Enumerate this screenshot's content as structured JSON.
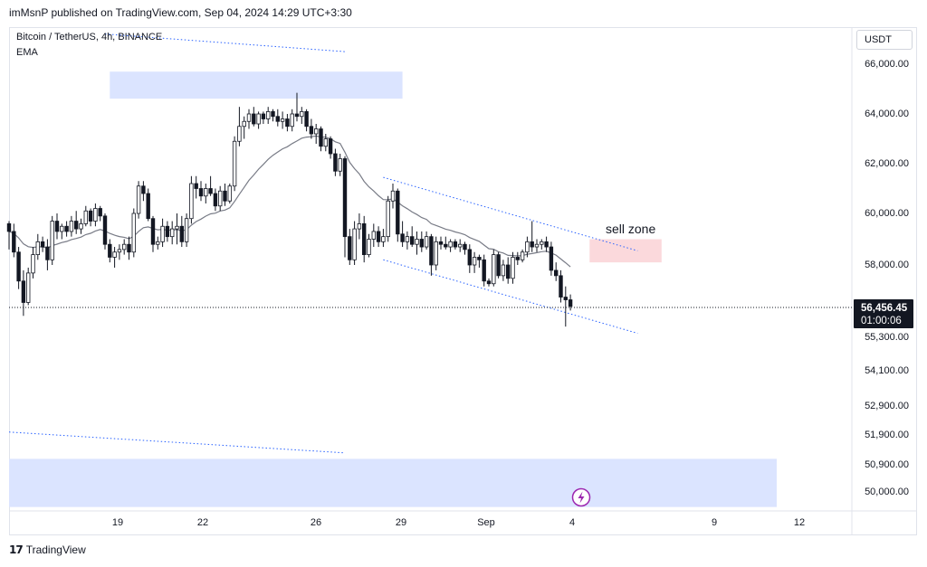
{
  "header": {
    "publisher_line": "imMsnP published on TradingView.com, Sep 04, 2024 14:29 UTC+3:30"
  },
  "legend": {
    "symbol": "Bitcoin / TetherUS, 4h, BINANCE",
    "indicator": "EMA"
  },
  "price_axis": {
    "currency": "USDT",
    "current_price": "56,456.45",
    "countdown": "01:00:06"
  },
  "annotations": {
    "sell_zone": "sell zone"
  },
  "footer": {
    "brand": "TradingView"
  },
  "colors": {
    "bull": "#ffffff",
    "bear": "#131722",
    "ema": "#787b86",
    "zone_blue": "#dbe4ff",
    "zone_red": "#fbd9dc",
    "trendline": "#2962ff",
    "price_label_bg": "#131722",
    "lightning": "#9c27b0"
  },
  "chart_data": {
    "type": "candlestick",
    "x_axis_labels": [
      "19",
      "22",
      "26",
      "29",
      "Sep",
      "4",
      "9",
      "12"
    ],
    "y_axis_labels": [
      "66,000.00",
      "64,000.00",
      "62,000.00",
      "60,000.00",
      "58,000.00",
      "55,300.00",
      "54,100.00",
      "52,900.00",
      "51,900.00",
      "50,900.00",
      "50,000.00"
    ],
    "current_price": 56456.45,
    "candles": [
      [
        59600,
        59700,
        58600,
        59300
      ],
      [
        59300,
        59600,
        58300,
        58500
      ],
      [
        58500,
        58700,
        57100,
        57400
      ],
      [
        57400,
        57800,
        56100,
        56600
      ],
      [
        56600,
        57900,
        56500,
        57700
      ],
      [
        57700,
        58700,
        57500,
        58400
      ],
      [
        58400,
        59200,
        58200,
        58900
      ],
      [
        58900,
        59100,
        58500,
        58700
      ],
      [
        58700,
        59000,
        57800,
        58200
      ],
      [
        58200,
        59900,
        58000,
        59700
      ],
      [
        59700,
        60000,
        59000,
        59300
      ],
      [
        59300,
        59600,
        59000,
        59500
      ],
      [
        59500,
        59700,
        59100,
        59300
      ],
      [
        59300,
        59900,
        59100,
        59700
      ],
      [
        59700,
        60100,
        59200,
        59400
      ],
      [
        59400,
        59800,
        59200,
        59600
      ],
      [
        59600,
        60300,
        59500,
        60100
      ],
      [
        60100,
        60200,
        59500,
        59700
      ],
      [
        59700,
        60400,
        59500,
        60200
      ],
      [
        60200,
        60300,
        59700,
        59900
      ],
      [
        59900,
        60000,
        58600,
        58800
      ],
      [
        58800,
        59000,
        58100,
        58300
      ],
      [
        58300,
        58700,
        57900,
        58500
      ],
      [
        58500,
        58800,
        58200,
        58600
      ],
      [
        58600,
        59000,
        58400,
        58800
      ],
      [
        58800,
        59100,
        58200,
        58500
      ],
      [
        58500,
        60200,
        58300,
        60000
      ],
      [
        60000,
        61300,
        59800,
        61100
      ],
      [
        61100,
        61300,
        60500,
        60800
      ],
      [
        60800,
        61000,
        59700,
        59800
      ],
      [
        59800,
        59900,
        58500,
        58800
      ],
      [
        58800,
        59100,
        58600,
        58900
      ],
      [
        58900,
        59800,
        58700,
        59500
      ],
      [
        59500,
        59700,
        58900,
        59100
      ],
      [
        59100,
        59700,
        58800,
        59400
      ],
      [
        59400,
        60000,
        58800,
        59500
      ],
      [
        59500,
        59900,
        58700,
        58900
      ],
      [
        58900,
        60000,
        58700,
        59800
      ],
      [
        59800,
        61500,
        59600,
        61200
      ],
      [
        61200,
        61500,
        60600,
        61000
      ],
      [
        61000,
        61300,
        60500,
        60700
      ],
      [
        60700,
        61200,
        60400,
        61000
      ],
      [
        61000,
        61500,
        60700,
        60800
      ],
      [
        60800,
        61000,
        60100,
        60300
      ],
      [
        60300,
        61100,
        60100,
        60900
      ],
      [
        60900,
        61200,
        60300,
        60500
      ],
      [
        60500,
        61200,
        60400,
        61100
      ],
      [
        61100,
        63100,
        60900,
        62900
      ],
      [
        62900,
        64300,
        62700,
        63500
      ],
      [
        63500,
        63900,
        63000,
        63700
      ],
      [
        63700,
        64200,
        63400,
        64000
      ],
      [
        64000,
        64300,
        63500,
        63600
      ],
      [
        63600,
        64100,
        63400,
        64000
      ],
      [
        64000,
        64100,
        63600,
        63800
      ],
      [
        63800,
        64300,
        63600,
        64100
      ],
      [
        64100,
        64200,
        63700,
        63900
      ],
      [
        63900,
        64200,
        63500,
        63700
      ],
      [
        63700,
        64100,
        63400,
        63800
      ],
      [
        63800,
        64000,
        63300,
        63500
      ],
      [
        63500,
        64200,
        63300,
        64000
      ],
      [
        64000,
        64900,
        63700,
        63900
      ],
      [
        63900,
        64300,
        63600,
        64100
      ],
      [
        64100,
        64200,
        63300,
        63500
      ],
      [
        63500,
        63800,
        63000,
        63200
      ],
      [
        63200,
        63600,
        62800,
        63400
      ],
      [
        63400,
        63500,
        62500,
        62700
      ],
      [
        62700,
        63200,
        62500,
        63000
      ],
      [
        63000,
        63100,
        62200,
        62400
      ],
      [
        62400,
        62600,
        61500,
        61700
      ],
      [
        61700,
        62400,
        61500,
        62200
      ],
      [
        62200,
        62300,
        58300,
        59100
      ],
      [
        59100,
        59400,
        58000,
        58200
      ],
      [
        58200,
        59700,
        58000,
        59400
      ],
      [
        59400,
        60000,
        59000,
        59600
      ],
      [
        59600,
        59900,
        58100,
        58400
      ],
      [
        58400,
        59200,
        58300,
        59000
      ],
      [
        59000,
        59600,
        58700,
        59300
      ],
      [
        59300,
        59500,
        58700,
        58900
      ],
      [
        58900,
        59400,
        58700,
        59100
      ],
      [
        59100,
        60700,
        58900,
        60500
      ],
      [
        60500,
        61200,
        60200,
        60900
      ],
      [
        60900,
        61000,
        58900,
        59200
      ],
      [
        59200,
        59700,
        58700,
        58900
      ],
      [
        58900,
        59300,
        58600,
        59100
      ],
      [
        59100,
        59500,
        58700,
        58800
      ],
      [
        58800,
        59300,
        58400,
        59000
      ],
      [
        59000,
        59300,
        58500,
        58700
      ],
      [
        58700,
        59300,
        58600,
        59100
      ],
      [
        59100,
        59200,
        57600,
        58000
      ],
      [
        58000,
        59100,
        57800,
        58900
      ],
      [
        58900,
        59100,
        58600,
        58800
      ],
      [
        58800,
        59100,
        58600,
        58700
      ],
      [
        58700,
        59000,
        58500,
        58900
      ],
      [
        58900,
        59000,
        58600,
        58700
      ],
      [
        58700,
        59000,
        58500,
        58800
      ],
      [
        58800,
        58900,
        58400,
        58600
      ],
      [
        58600,
        58800,
        57700,
        58000
      ],
      [
        58000,
        58500,
        57700,
        58300
      ],
      [
        58300,
        58400,
        57900,
        58200
      ],
      [
        58200,
        58400,
        57200,
        57400
      ],
      [
        57400,
        57500,
        57200,
        57300
      ],
      [
        57300,
        58600,
        57200,
        58400
      ],
      [
        58400,
        58500,
        57500,
        57600
      ],
      [
        57600,
        58200,
        57400,
        58000
      ],
      [
        58000,
        58300,
        57300,
        57500
      ],
      [
        57500,
        58500,
        57300,
        58300
      ],
      [
        58300,
        58500,
        58000,
        58200
      ],
      [
        58200,
        58600,
        58100,
        58500
      ],
      [
        58500,
        59100,
        58300,
        58900
      ],
      [
        58900,
        59700,
        58500,
        58700
      ],
      [
        58700,
        59000,
        58500,
        58800
      ],
      [
        58800,
        59000,
        58600,
        58900
      ],
      [
        58900,
        59100,
        58500,
        58700
      ],
      [
        58700,
        58900,
        57600,
        57800
      ],
      [
        57800,
        58100,
        57400,
        57600
      ],
      [
        57600,
        57800,
        56600,
        56800
      ],
      [
        56800,
        57200,
        55700,
        56700
      ],
      [
        56700,
        56900,
        56300,
        56456
      ]
    ],
    "ema": {
      "name": "EMA",
      "period_note": ""
    },
    "zones": [
      {
        "name": "supply-zone-top",
        "from_bar": 21,
        "to_bar": 82,
        "price_low": 64650,
        "price_high": 65800
      },
      {
        "name": "sell-zone",
        "from_bar": 121,
        "to_bar": 136,
        "price_low": 58100,
        "price_high": 59000
      },
      {
        "name": "demand-zone-bottom",
        "from_bar": -5,
        "to_bar": 160,
        "price_low": 49500,
        "price_high": 51100
      }
    ],
    "trendlines": [
      {
        "name": "channel-upper",
        "points": [
          [
            78,
            61450
          ],
          [
            131,
            58550
          ]
        ]
      },
      {
        "name": "channel-lower",
        "points": [
          [
            78,
            58200
          ],
          [
            131,
            55450
          ]
        ]
      },
      {
        "name": "top-line",
        "points": [
          [
            20,
            67400
          ],
          [
            70,
            66650
          ]
        ]
      },
      {
        "name": "bottom-line",
        "points": [
          [
            -5,
            52000
          ],
          [
            70,
            51300
          ]
        ]
      }
    ]
  }
}
